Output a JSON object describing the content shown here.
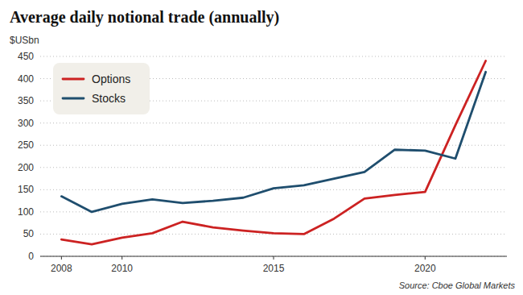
{
  "chart_data": {
    "type": "line",
    "title": "Average daily notional trade (annually)",
    "ylabel": "$USbn",
    "annotations": [
      "Source: Cboe Global Markets"
    ],
    "x": [
      2008,
      2009,
      2010,
      2011,
      2012,
      2013,
      2014,
      2015,
      2016,
      2017,
      2018,
      2019,
      2020,
      2021,
      2022
    ],
    "series": [
      {
        "name": "Options",
        "color": "#cc2222",
        "values": [
          38,
          27,
          42,
          52,
          78,
          65,
          58,
          52,
          50,
          85,
          130,
          138,
          145,
          295,
          440
        ]
      },
      {
        "name": "Stocks",
        "color": "#1f4e6e",
        "values": [
          135,
          100,
          118,
          128,
          120,
          125,
          132,
          153,
          160,
          175,
          190,
          240,
          238,
          220,
          415
        ]
      }
    ],
    "xlim": [
      2007.3,
      2022.7
    ],
    "xticks": [
      2008,
      2010,
      2015,
      2020
    ],
    "ylim": [
      0,
      450
    ],
    "yticks": [
      0,
      50,
      100,
      150,
      200,
      250,
      300,
      350,
      400,
      450
    ],
    "grid": true,
    "legend": "upper left"
  }
}
